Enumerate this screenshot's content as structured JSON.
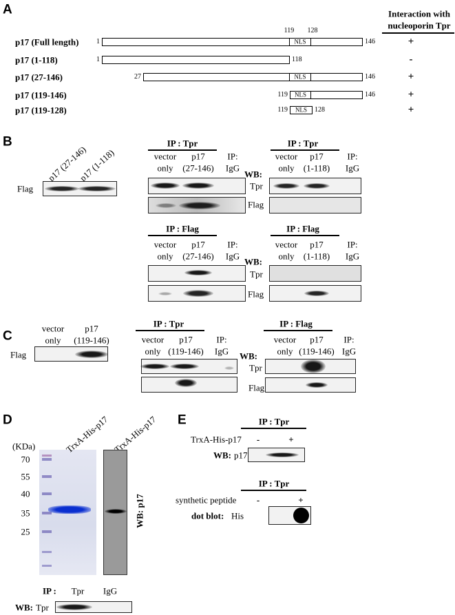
{
  "panel_a": {
    "label": "A",
    "header": [
      "Interaction with",
      "nucleoporin Tpr"
    ],
    "constructs": [
      {
        "name": "p17 (Full length)",
        "start": "1",
        "end": "146",
        "nls_start": "119",
        "nls_end": "128",
        "nls": "NLS",
        "interaction": "+"
      },
      {
        "name": "p17 (1-118)",
        "start": "1",
        "end": "118",
        "interaction": "-"
      },
      {
        "name": "p17 (27-146)",
        "start": "27",
        "end": "146",
        "nls": "NLS",
        "interaction": "+"
      },
      {
        "name": "p17 (119-146)",
        "start": "119",
        "end": "146",
        "nls": "NLS",
        "interaction": "+"
      },
      {
        "name": "p17 (119-128)",
        "start": "119",
        "end": "128",
        "nls": "NLS",
        "interaction": "+"
      }
    ]
  },
  "panel_b": {
    "label": "B",
    "input": {
      "lanes": [
        "p17 (27-146)",
        "p17 (1-118)"
      ],
      "row": "Flag"
    },
    "blots": [
      {
        "ip": "IP : Tpr",
        "lanes": [
          [
            "vector",
            "only"
          ],
          [
            "p17",
            "(27-146)"
          ],
          [
            "IP:",
            "IgG"
          ]
        ]
      },
      {
        "ip": "IP : Tpr",
        "lanes": [
          [
            "vector",
            "only"
          ],
          [
            "p17",
            "(1-118)"
          ],
          [
            "IP:",
            "IgG"
          ]
        ],
        "wb": "WB:",
        "rows": [
          "Tpr",
          "Flag"
        ]
      },
      {
        "ip": "IP : Flag",
        "lanes": [
          [
            "vector",
            "only"
          ],
          [
            "p17",
            "(27-146)"
          ],
          [
            "IP:",
            "IgG"
          ]
        ]
      },
      {
        "ip": "IP : Flag",
        "lanes": [
          [
            "vector",
            "only"
          ],
          [
            "p17",
            "(1-118)"
          ],
          [
            "IP:",
            "IgG"
          ]
        ],
        "wb": "WB:",
        "rows": [
          "Tpr",
          "Flag"
        ]
      }
    ]
  },
  "panel_c": {
    "label": "C",
    "input": {
      "lanes": [
        [
          "vector",
          "only"
        ],
        [
          "p17",
          "(119-146)"
        ]
      ],
      "row": "Flag"
    },
    "blots": [
      {
        "ip": "IP : Tpr",
        "lanes": [
          [
            "vector",
            "only"
          ],
          [
            "p17",
            "(119-146)"
          ],
          [
            "IP:",
            "IgG"
          ]
        ]
      },
      {
        "ip": "IP : Flag",
        "lanes": [
          [
            "vector",
            "only"
          ],
          [
            "p17",
            "(119-146)"
          ],
          [
            "IP:",
            "IgG"
          ]
        ],
        "wb": "WB:",
        "rows": [
          "Tpr",
          "Flag"
        ]
      }
    ]
  },
  "panel_d": {
    "label": "D",
    "unit": "(KDa)",
    "markers": [
      "70",
      "55",
      "40",
      "35",
      "25"
    ],
    "lanes": [
      "TrxA-His-p17",
      "TrxA-His-p17"
    ],
    "wb_label": "WB: p17",
    "ip": "IP :",
    "ip_lanes": [
      "Tpr",
      "IgG"
    ],
    "wb_bottom": [
      "WB:",
      "Tpr"
    ]
  },
  "panel_e": {
    "label": "E",
    "top": {
      "ip": "IP : Tpr",
      "row": "TrxA-His-p17",
      "signs": [
        "-",
        "+"
      ],
      "wb": [
        "WB:",
        "p17"
      ]
    },
    "bottom": {
      "ip": "IP : Tpr",
      "row": "synthetic peptide",
      "signs": [
        "-",
        "+"
      ],
      "wb": [
        "dot blot:",
        "His"
      ]
    }
  }
}
